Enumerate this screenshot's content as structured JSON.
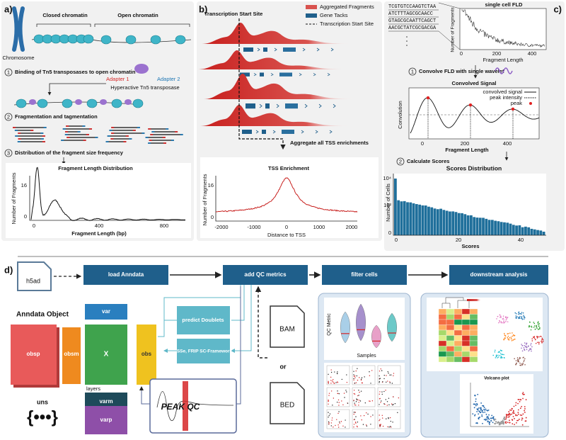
{
  "panel_a": {
    "label": "a)",
    "closed_chromatin": "Closed chromatin",
    "open_chromatin": "Open chromatin",
    "chromosome": "Chromosome",
    "steps": [
      {
        "number": 1,
        "text": "Binding of Tn5 transposases to open chromatin"
      },
      {
        "number": 2,
        "text": "Fragmentation and tagmentation"
      },
      {
        "number": 3,
        "text": "Distribution of the fragment size frequency"
      }
    ],
    "adapter_1": "Adapter 1",
    "adapter_2": "Adapter 2",
    "transposase": "Hyperactive Tn5 transposase",
    "plot": {
      "title": "Fragment Length Distribution",
      "y_label": "Number of Fragments",
      "x_label": "Fragment Length (bp)",
      "yticks": [
        16,
        0
      ],
      "xticks": [
        0,
        400,
        800
      ]
    }
  },
  "panel_b": {
    "label": "b)",
    "tss_label": "Transcription Start Site",
    "legend": [
      "Aggregated Fragments",
      "Gene Tacks",
      "Transcription Start Site"
    ],
    "aggregate_text": "Aggregate all TSS enrichments",
    "plot": {
      "title": "TSS Enrichment",
      "y_label": "Number of Fragments",
      "x_label": "Distance to TSS",
      "yticks": [
        16,
        0
      ],
      "xticks": [
        -2000,
        -1000,
        0,
        1000,
        2000
      ]
    }
  },
  "panel_c": {
    "label": "c)",
    "sequences": [
      "TCGTGTCCAAGTCTAA",
      "ATCTTTAGCGCAACC",
      "GTAGCGCAATTCAGCT",
      "AACGCTATCGCGACGA"
    ],
    "fld_plot": {
      "title": "single cell FLD",
      "y_label": "Number of Fragments",
      "x_label": "Fragment Length",
      "xticks": [
        0,
        200,
        400
      ]
    },
    "steps": [
      {
        "number": 1,
        "text": "Convolve FLD with single wavelet"
      },
      {
        "number": 2,
        "text": "Calculate Scores"
      }
    ],
    "conv_plot": {
      "title": "Convolved Signal",
      "legend": [
        "convolved signal",
        "peak intensity",
        "peak"
      ],
      "y_label": "Convolution",
      "x_label": "Fragment Length",
      "xticks": [
        0,
        200,
        400
      ]
    },
    "scores_plot": {
      "title": "Scores  Distribution",
      "y_label": "Number of Cells",
      "x_label": "Scores",
      "yticks": [
        "10⁴",
        "10²",
        "0"
      ],
      "xticks": [
        0,
        20,
        40
      ]
    }
  },
  "panel_d": {
    "label": "d)",
    "input": "h5ad",
    "pipeline": [
      "load Anndata",
      "add QC metrics",
      "filter cells",
      "downstream analysis"
    ],
    "anndata": {
      "title": "Anndata Object",
      "var": "var",
      "obsp": "obsp",
      "obsm": "obsm",
      "x": "X",
      "obs": "obs",
      "layers": "layers",
      "varm": "varm",
      "varp": "varp",
      "uns": "uns",
      "uns_symbol": "{•••}"
    },
    "qc_boxes": [
      "predict Doublets",
      "TSSe, FRIP SC-Framework"
    ],
    "files": [
      "BAM",
      "BED"
    ],
    "or": "or",
    "peak_qc": "PEAK QC",
    "filter": {
      "y_label": "QC Metric",
      "x_label": "Samples"
    },
    "volcano": "Volcano plot"
  }
}
